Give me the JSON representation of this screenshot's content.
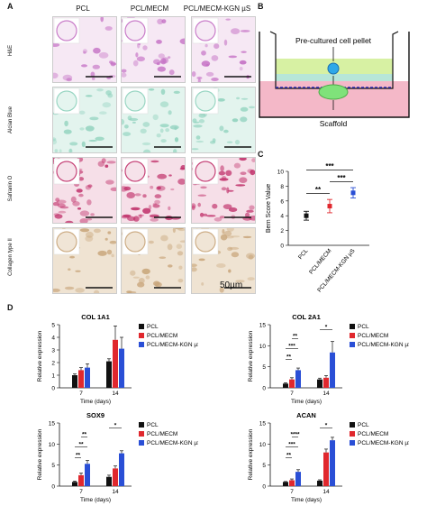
{
  "panels": {
    "A": "A",
    "B": "B",
    "C": "C",
    "D": "D"
  },
  "panelA": {
    "columns": [
      "PCL",
      "PCL/MECM",
      "PCL/MECM-KGN µS"
    ],
    "rows": [
      "H&E",
      "Alcian Blue",
      "Safranin O",
      "Collagen type II"
    ],
    "scale_label": "50µm",
    "row_colors": [
      "#c46fc4",
      "#8fd2bd",
      "#c0306a",
      "#c8a57a"
    ],
    "row_bg": [
      "#f6e8f4",
      "#e3f4ee",
      "#f6dfe8",
      "#efe3d2"
    ]
  },
  "panelB": {
    "pellet_label": "Pre-cultured cell pellet",
    "scaffold_label": "Scaffold"
  },
  "chart_data": [
    {
      "type": "scatter",
      "panel": "C",
      "ylabel": "Bern Score Value",
      "ylim": [
        0,
        10
      ],
      "yticks": [
        0,
        2,
        4,
        6,
        8,
        10
      ],
      "categories": [
        "PCL",
        "PCL/MECM",
        "PCL/MECM-KGN µS"
      ],
      "values": [
        4.0,
        5.3,
        7.1
      ],
      "errors": [
        0.6,
        0.9,
        0.7
      ],
      "colors": [
        "#111111",
        "#e0282e",
        "#2a4fd6"
      ],
      "significance": [
        "**",
        "***",
        "***"
      ]
    },
    {
      "type": "bar",
      "panel": "D",
      "title": "COL 1A1",
      "ylabel": "Relative expression",
      "xlabel": "Time (days)",
      "categories": [
        "7",
        "14"
      ],
      "ylim": [
        0,
        5
      ],
      "yticks": [
        0,
        1,
        2,
        3,
        4,
        5
      ],
      "series": [
        {
          "name": "PCL",
          "values": [
            1.0,
            2.1
          ],
          "errors": [
            0.1,
            0.2
          ]
        },
        {
          "name": "PCL/MECM",
          "values": [
            1.4,
            3.8
          ],
          "errors": [
            0.2,
            1.1
          ]
        },
        {
          "name": "PCL/MECM-KGN µS",
          "values": [
            1.6,
            3.1
          ],
          "errors": [
            0.3,
            0.9
          ]
        }
      ],
      "significance": []
    },
    {
      "type": "bar",
      "panel": "D",
      "title": "COL 2A1",
      "ylabel": "Relative expression",
      "xlabel": "Time (days)",
      "categories": [
        "7",
        "14"
      ],
      "ylim": [
        0,
        15
      ],
      "yticks": [
        0,
        5,
        10,
        15
      ],
      "series": [
        {
          "name": "PCL",
          "values": [
            1.0,
            2.0
          ],
          "errors": [
            0.2,
            0.3
          ]
        },
        {
          "name": "PCL/MECM",
          "values": [
            2.0,
            2.4
          ],
          "errors": [
            0.4,
            0.5
          ]
        },
        {
          "name": "PCL/MECM-KGN µS",
          "values": [
            4.2,
            8.4
          ],
          "errors": [
            0.5,
            2.6
          ]
        }
      ],
      "significance": [
        "**",
        "***",
        "**",
        "*"
      ]
    },
    {
      "type": "bar",
      "panel": "D",
      "title": "SOX9",
      "ylabel": "Relative expression",
      "xlabel": "Time (days)",
      "categories": [
        "7",
        "14"
      ],
      "ylim": [
        0,
        15
      ],
      "yticks": [
        0,
        5,
        10,
        15
      ],
      "series": [
        {
          "name": "PCL",
          "values": [
            1.0,
            2.2
          ],
          "errors": [
            0.2,
            0.4
          ]
        },
        {
          "name": "PCL/MECM",
          "values": [
            2.6,
            4.2
          ],
          "errors": [
            0.5,
            0.6
          ]
        },
        {
          "name": "PCL/MECM-KGN µS",
          "values": [
            5.3,
            7.8
          ],
          "errors": [
            0.8,
            0.6
          ]
        }
      ],
      "significance": [
        "**",
        "**",
        "**",
        "*"
      ]
    },
    {
      "type": "bar",
      "panel": "D",
      "title": "ACAN",
      "ylabel": "Relative expression",
      "xlabel": "Time (days)",
      "categories": [
        "7",
        "14"
      ],
      "ylim": [
        0,
        15
      ],
      "yticks": [
        0,
        5,
        10,
        15
      ],
      "series": [
        {
          "name": "PCL",
          "values": [
            1.0,
            1.3
          ],
          "errors": [
            0.1,
            0.2
          ]
        },
        {
          "name": "PCL/MECM",
          "values": [
            1.4,
            8.0
          ],
          "errors": [
            0.3,
            0.8
          ]
        },
        {
          "name": "PCL/MECM-KGN µS",
          "values": [
            3.4,
            10.9
          ],
          "errors": [
            0.5,
            0.7
          ]
        }
      ],
      "significance": [
        "**",
        "***",
        "****",
        "*"
      ]
    }
  ]
}
